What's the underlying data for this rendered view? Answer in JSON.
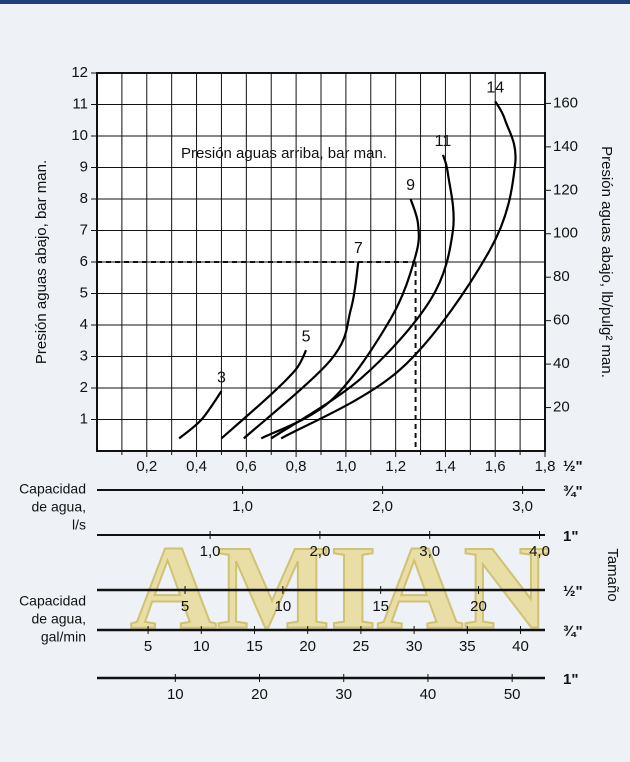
{
  "chart_data": {
    "type": "line",
    "y_label": "Presión aguas abajo, bar man.",
    "y2_label": "Presión aguas abajo, lb/pulg² man.",
    "annotation": "Presión aguas arriba, bar man.",
    "watermark": "AMIAN",
    "xlim": [
      0,
      1.8
    ],
    "xticks": [
      {
        "value": 0.2,
        "label": "0,2"
      },
      {
        "value": 0.4,
        "label": "0,4"
      },
      {
        "value": 0.6,
        "label": "0,6"
      },
      {
        "value": 0.8,
        "label": "0,8"
      },
      {
        "value": 1.0,
        "label": "1,0"
      },
      {
        "value": 1.2,
        "label": "1,2"
      },
      {
        "value": 1.4,
        "label": "1,4"
      },
      {
        "value": 1.6,
        "label": "1,6"
      },
      {
        "value": 1.8,
        "label": "1,8"
      }
    ],
    "xminor": [
      0.1,
      0.3,
      0.5,
      0.7,
      0.9,
      1.1,
      1.3,
      1.5,
      1.7
    ],
    "x_size": "½\"",
    "ylim": [
      0,
      12
    ],
    "yticks": [
      1,
      2,
      3,
      4,
      5,
      6,
      7,
      8,
      9,
      10,
      11,
      12
    ],
    "y2lim": [
      0,
      174
    ],
    "y2ticks": [
      20,
      40,
      60,
      80,
      100,
      120,
      140,
      160
    ],
    "grid": true,
    "guide": {
      "x": 1.28,
      "y": 6
    },
    "series": [
      {
        "name": "3",
        "color": "#000000",
        "x": [
          0.33,
          0.42,
          0.5
        ],
        "values": [
          0.4,
          1.0,
          1.9
        ]
      },
      {
        "name": "5",
        "color": "#000000",
        "x": [
          0.5,
          0.7,
          0.8,
          0.84
        ],
        "values": [
          0.4,
          1.8,
          2.6,
          3.2
        ]
      },
      {
        "name": "7",
        "color": "#000000",
        "x": [
          0.59,
          0.94,
          1.02,
          1.05
        ],
        "values": [
          0.4,
          2.9,
          4.5,
          6.0
        ]
      },
      {
        "name": "9",
        "color": "#000000",
        "x": [
          0.66,
          0.94,
          1.18,
          1.28,
          1.29,
          1.26
        ],
        "values": [
          0.4,
          1.6,
          4.2,
          6.2,
          7.2,
          8.0
        ]
      },
      {
        "name": "11",
        "color": "#000000",
        "x": [
          0.7,
          1.06,
          1.34,
          1.43,
          1.41,
          1.39
        ],
        "values": [
          0.4,
          2.3,
          4.8,
          7.0,
          8.8,
          9.4
        ]
      },
      {
        "name": "14",
        "color": "#000000",
        "x": [
          0.74,
          1.22,
          1.58,
          1.68,
          1.64,
          1.6
        ],
        "values": [
          0.4,
          2.6,
          6.4,
          9.1,
          10.5,
          11.1
        ]
      }
    ],
    "size_title": "Tamaño",
    "scale_groups": [
      {
        "lines": [
          "Capacidad",
          "de agua,",
          "l/s"
        ]
      },
      {
        "lines": [
          "Capacidad",
          "de agua,",
          "gal/min"
        ]
      }
    ],
    "scales": [
      {
        "size": "¾\"",
        "lim": [
          -0.04,
          3.16
        ],
        "ticks": [
          {
            "value": 1.0,
            "label": "1,0"
          },
          {
            "value": 2.0,
            "label": "2,0"
          },
          {
            "value": 3.0,
            "label": "3,0"
          }
        ]
      },
      {
        "size": "1\"",
        "lim": [
          -0.03,
          4.05
        ],
        "ticks": [
          {
            "value": 1.0,
            "label": "1,0"
          },
          {
            "value": 2.0,
            "label": "2,0"
          },
          {
            "value": 3.0,
            "label": "3,0"
          },
          {
            "value": 4.0,
            "label": "4,0"
          }
        ]
      },
      {
        "size": "½\"",
        "lim": [
          0.5,
          23.4
        ],
        "ticks": [
          5,
          10,
          15,
          20
        ]
      },
      {
        "size": "¾\"",
        "lim": [
          0.2,
          42.3
        ],
        "ticks": [
          5,
          10,
          15,
          20,
          25,
          30,
          35,
          40
        ]
      },
      {
        "size": "1\"",
        "lim": [
          0.7,
          53.9
        ],
        "ticks": [
          10,
          20,
          30,
          40,
          50
        ]
      }
    ]
  }
}
